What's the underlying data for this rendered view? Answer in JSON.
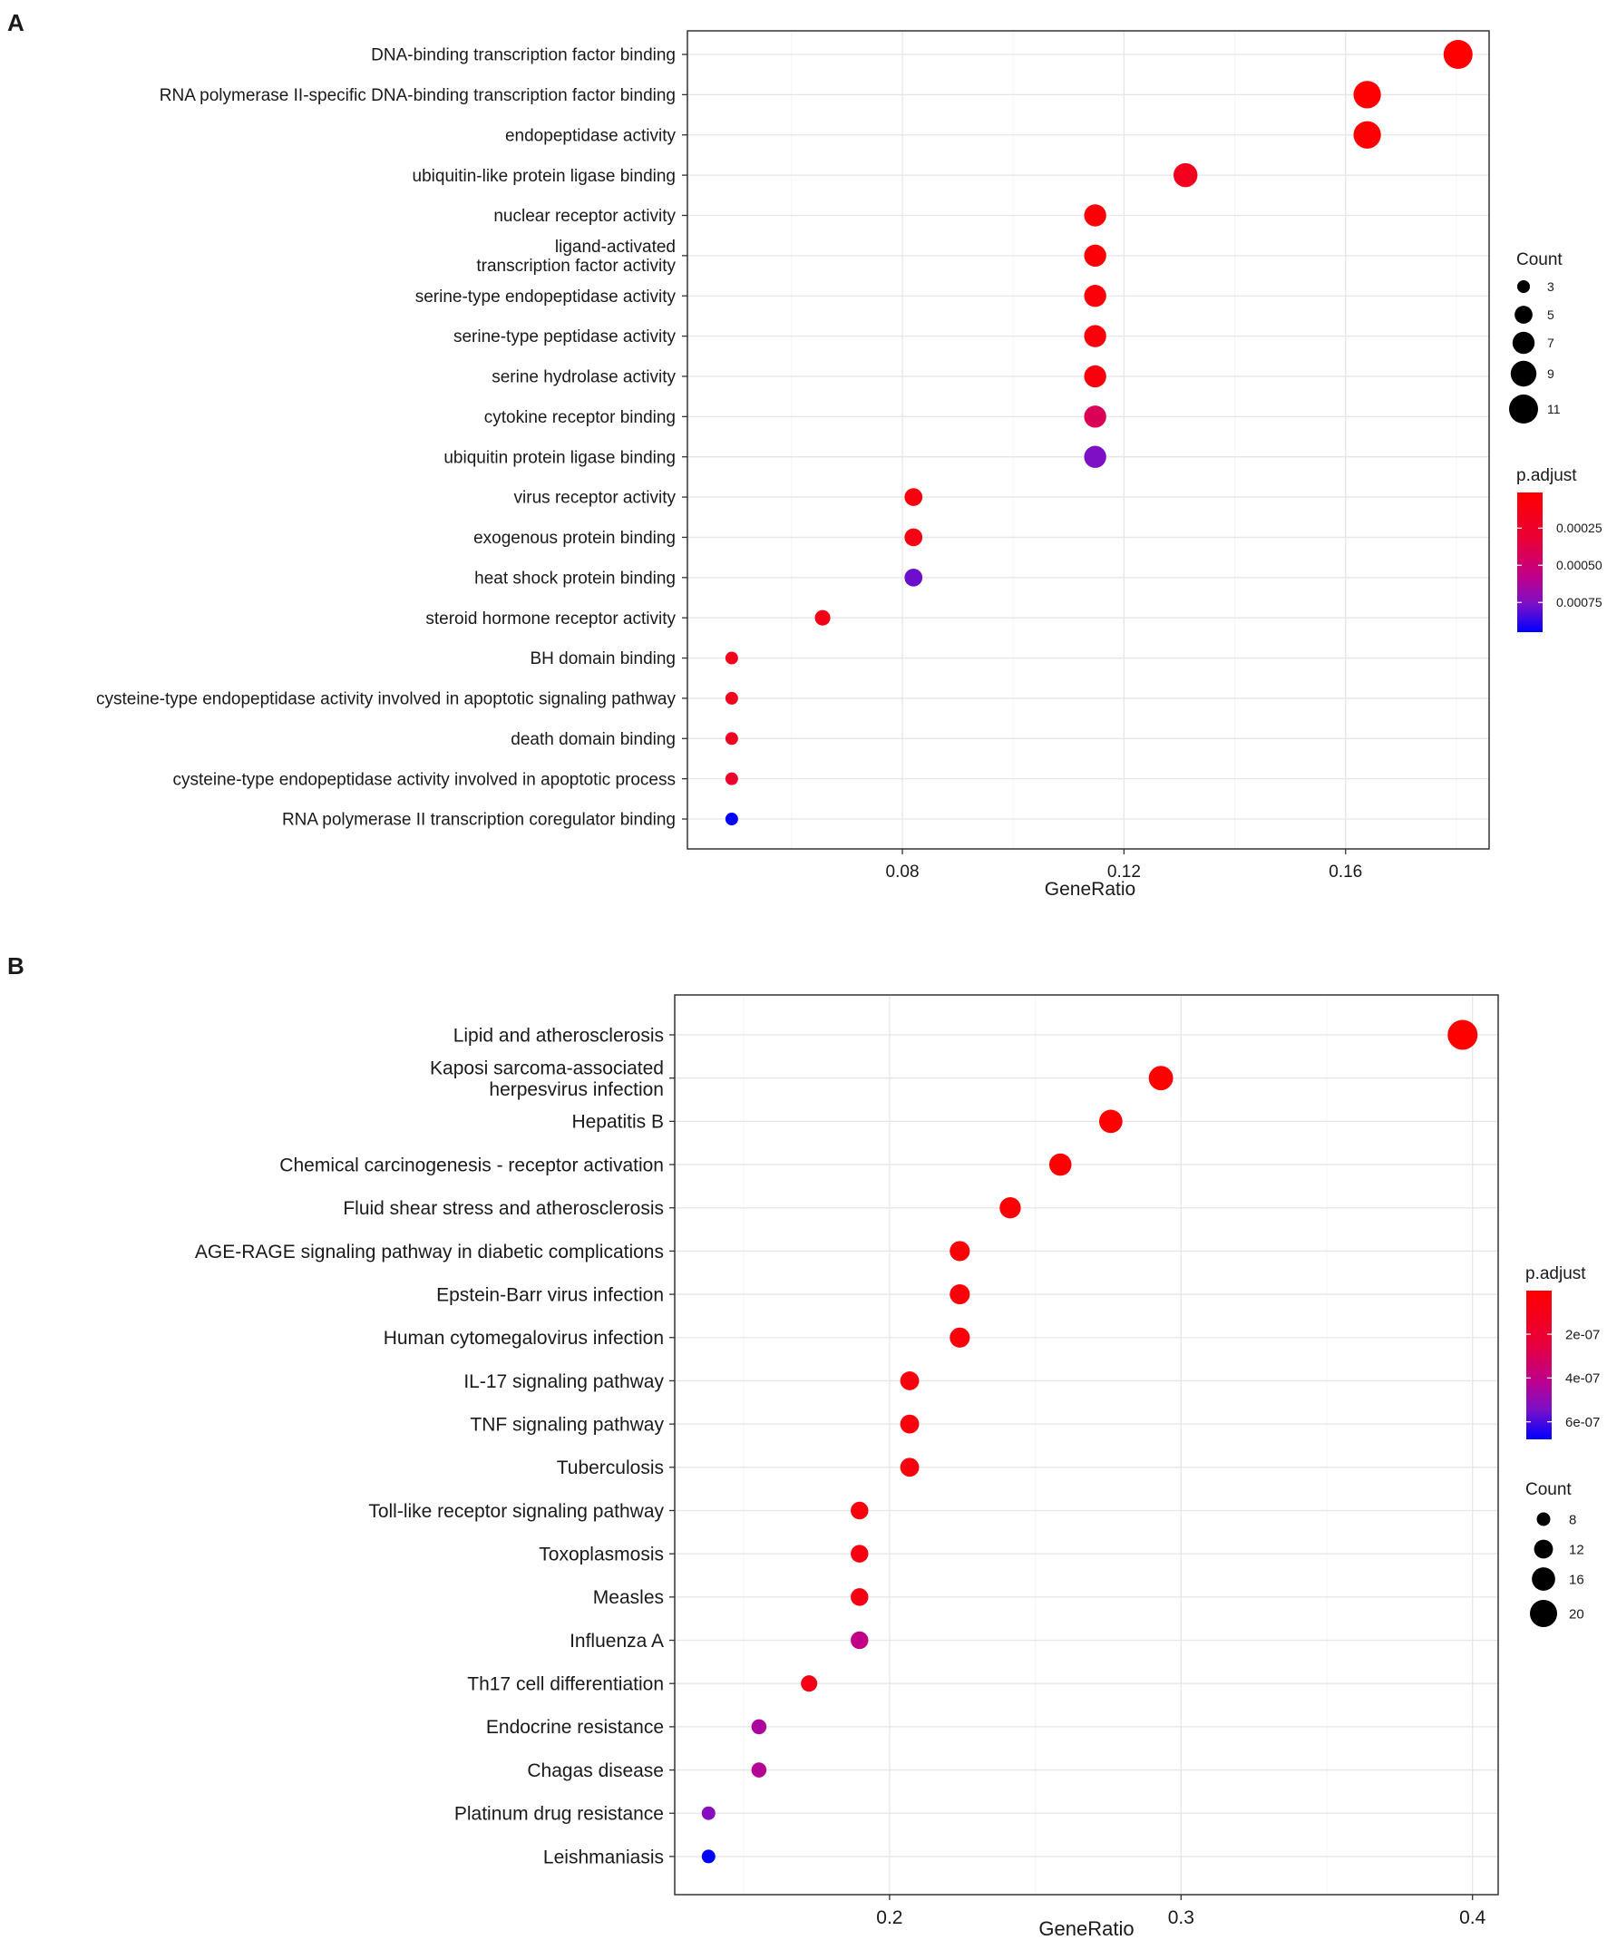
{
  "chart_data": [
    {
      "panel": "A",
      "type": "scatter",
      "title": "",
      "xlabel": "GeneRatio",
      "ylabel": "",
      "xlim": [
        0.0412,
        0.1859
      ],
      "xticks": [
        "0.08",
        "0.12",
        "0.16"
      ],
      "grid": true,
      "categories": [
        "DNA-binding transcription factor binding",
        "RNA polymerase II-specific DNA-binding transcription factor binding",
        "endopeptidase activity",
        "ubiquitin-like protein ligase binding",
        "nuclear receptor activity",
        "ligand-activated\ntranscription factor activity",
        "serine-type endopeptidase activity",
        "serine-type peptidase activity",
        "serine hydrolase activity",
        "cytokine receptor binding",
        "ubiquitin protein ligase binding",
        "virus receptor activity",
        "exogenous protein binding",
        "heat shock protein binding",
        "steroid hormone receptor activity",
        "BH domain binding",
        "cysteine-type endopeptidase activity involved in apoptotic signaling pathway",
        "death domain binding",
        "cysteine-type endopeptidase activity involved in apoptotic process",
        "RNA polymerase II transcription coregulator binding"
      ],
      "gene_ratio": [
        0.1803,
        0.1639,
        0.1639,
        0.1311,
        0.1148,
        0.1148,
        0.1148,
        0.1148,
        0.1148,
        0.1148,
        0.1148,
        0.082,
        0.082,
        0.082,
        0.0656,
        0.0492,
        0.0492,
        0.0492,
        0.0492,
        0.0492
      ],
      "count": [
        11,
        10,
        10,
        8,
        7,
        7,
        7,
        7,
        7,
        7,
        7,
        5,
        5,
        5,
        4,
        3,
        3,
        3,
        3,
        3
      ],
      "p_adjust": [
        1e-05,
        2e-05,
        3e-05,
        0.00018,
        4e-05,
        5e-05,
        6e-05,
        7e-05,
        8e-05,
        0.00042,
        0.00075,
        0.0001,
        0.00012,
        0.00078,
        0.00014,
        0.00016,
        0.00018,
        0.0002,
        0.00026,
        0.00095
      ],
      "size_legend": {
        "title": "Count",
        "values": [
          3,
          5,
          7,
          9,
          11
        ],
        "labels": [
          "3",
          "5",
          "7",
          "9",
          "11"
        ]
      },
      "color_legend": {
        "title": "p.adjust",
        "range": [
          1e-05,
          0.00095
        ],
        "ticks": [
          0.00025,
          0.0005,
          0.00075
        ],
        "labels": [
          "0.00025",
          "0.00050",
          "0.00075"
        ]
      },
      "legend_position": "right"
    },
    {
      "panel": "B",
      "type": "scatter",
      "title": "",
      "xlabel": "GeneRatio",
      "ylabel": "",
      "xlim": [
        0.1263,
        0.4088
      ],
      "xticks": [
        "0.2",
        "0.3",
        "0.4"
      ],
      "grid": true,
      "categories": [
        "Lipid and atherosclerosis",
        "Kaposi sarcoma-associated\nherpesvirus infection",
        "Hepatitis B",
        "Chemical carcinogenesis - receptor activation",
        "Fluid shear stress and atherosclerosis",
        "AGE-RAGE signaling pathway in diabetic complications",
        "Epstein-Barr virus infection",
        "Human cytomegalovirus infection",
        "IL-17 signaling pathway",
        "TNF signaling pathway",
        "Tuberculosis",
        "Toll-like receptor signaling pathway",
        "Toxoplasmosis",
        "Measles",
        "Influenza A",
        "Th17 cell differentiation",
        "Endocrine resistance",
        "Chagas disease",
        "Platinum drug resistance",
        "Leishmaniasis"
      ],
      "gene_ratio": [
        0.3966,
        0.2931,
        0.2759,
        0.2586,
        0.2414,
        0.2241,
        0.2241,
        0.2241,
        0.2069,
        0.2069,
        0.2069,
        0.1897,
        0.1897,
        0.1897,
        0.1897,
        0.1724,
        0.1552,
        0.1552,
        0.1379,
        0.1379
      ],
      "count": [
        23,
        17,
        16,
        15,
        14,
        13,
        13,
        13,
        12,
        12,
        12,
        11,
        11,
        11,
        11,
        10,
        9,
        9,
        8,
        8
      ],
      "p_adjust": [
        1e-09,
        5e-09,
        8e-09,
        1e-08,
        2e-08,
        3e-08,
        4e-08,
        4e-08,
        5e-08,
        5e-08,
        6e-08,
        6e-08,
        7e-08,
        8e-08,
        4e-07,
        9e-08,
        4.5e-07,
        4.3e-07,
        5.2e-07,
        6.8e-07
      ],
      "size_legend": {
        "title": "Count",
        "values": [
          8,
          12,
          16,
          20
        ],
        "labels": [
          "8",
          "12",
          "16",
          "20"
        ]
      },
      "color_legend": {
        "title": "p.adjust",
        "range": [
          1e-09,
          6.8e-07
        ],
        "ticks": [
          2e-07,
          4e-07,
          6e-07
        ],
        "labels": [
          "2e-07",
          "4e-07",
          "6e-07"
        ]
      },
      "legend_position": "right"
    }
  ],
  "panels": {
    "a": {
      "letter": "A",
      "count_title": "Count",
      "padj_title": "p.adjust",
      "xlabel": "GeneRatio"
    },
    "b": {
      "letter": "B",
      "count_title": "Count",
      "padj_title": "p.adjust",
      "xlabel": "GeneRatio"
    }
  },
  "colors": {
    "low_padj": "#ff0000",
    "high_padj": "#0000ff",
    "grid": "#ebebeb",
    "axis": "#333333"
  }
}
